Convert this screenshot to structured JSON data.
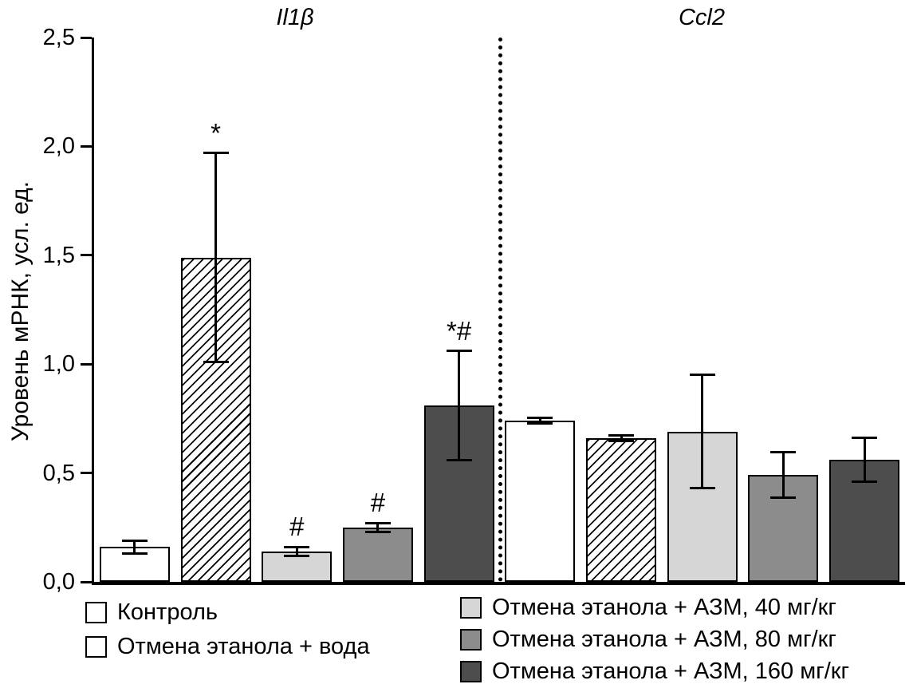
{
  "chart_data": {
    "type": "bar",
    "title": "",
    "ylabel": "Уровень мРНК, усл. ед.",
    "xlabel": "",
    "ylim": [
      0,
      2.5
    ],
    "yticks": [
      0,
      0.5,
      1.0,
      1.5,
      2.0,
      2.5
    ],
    "ytick_labels": [
      "0,0",
      "0,5",
      "1,0",
      "1,5",
      "2,0",
      "2,5"
    ],
    "grid": false,
    "group_separator": "dotted-vertical-line",
    "legend_position": "bottom",
    "series": [
      {
        "name": "Контроль",
        "fill": "#ffffff",
        "hatch": false
      },
      {
        "name": "Отмена этанола + вода",
        "fill": "#ffffff",
        "hatch": true
      },
      {
        "name": "Отмена этанола + АЗМ, 40 мг/кг",
        "fill": "#d6d6d6",
        "hatch": false
      },
      {
        "name": "Отмена этанола + АЗМ, 80 мг/кг",
        "fill": "#8c8c8c",
        "hatch": false
      },
      {
        "name": "Отмена этанола + АЗМ, 160 мг/кг",
        "fill": "#4d4d4d",
        "hatch": false
      }
    ],
    "groups": [
      {
        "label": "Il1β",
        "values": [
          0.16,
          1.49,
          0.14,
          0.25,
          0.81
        ],
        "errors": [
          0.03,
          0.48,
          0.02,
          0.02,
          0.25
        ],
        "annotations": [
          "",
          "*",
          "#",
          "#",
          "*#"
        ]
      },
      {
        "label": "Ccl2",
        "values": [
          0.74,
          0.66,
          0.69,
          0.49,
          0.56
        ],
        "errors": [
          0.012,
          0.012,
          0.26,
          0.105,
          0.1
        ],
        "annotations": [
          "",
          "",
          "",
          "",
          ""
        ]
      }
    ]
  }
}
